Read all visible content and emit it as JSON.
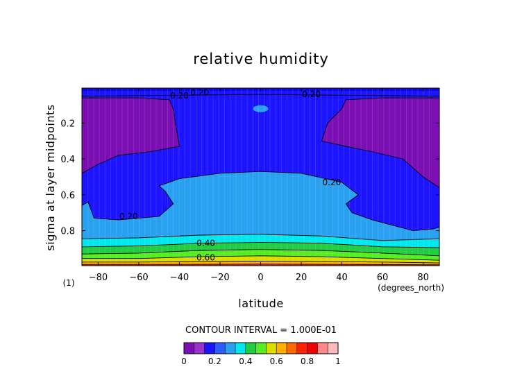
{
  "chart_data": {
    "type": "contour",
    "title": "relative humidity",
    "xlabel": "latitude",
    "ylabel": "sigma at layer midpoints",
    "x_units": "(degrees_north)",
    "corner_label": "(1)",
    "xlim": [
      -88,
      88
    ],
    "ylim": [
      0.995,
      0.005
    ],
    "y_inverted": true,
    "x_ticks": [
      -80,
      -60,
      -40,
      -20,
      0,
      20,
      40,
      60,
      80
    ],
    "x_tick_labels": [
      "−80",
      "−60",
      "−40",
      "−20",
      "0",
      "20",
      "40",
      "60",
      "80"
    ],
    "y_ticks": [
      0.2,
      0.4,
      0.6,
      0.8
    ],
    "y_tick_labels": [
      "0.2",
      "0.4",
      "0.6",
      "0.8"
    ],
    "contour_interval_label": "CONTOUR INTERVAL = 1.000E-01",
    "levels": [
      0,
      0.1,
      0.2,
      0.3,
      0.4,
      0.5,
      0.6,
      0.7,
      0.8,
      0.9,
      1.0
    ],
    "colorbar_tick_labels": [
      "0",
      "0.2",
      "0.4",
      "0.6",
      "0.8",
      "1"
    ],
    "colorbar_colors": [
      "#7b0fb3",
      "#9a33cc",
      "#1c14ff",
      "#2f5cff",
      "#2aa0f0",
      "#00e8ee",
      "#22cc44",
      "#55ee22",
      "#dddd00",
      "#ffb000",
      "#ff6a00",
      "#ff2200",
      "#f00000",
      "#ff8888",
      "#ffb8b8"
    ],
    "fill_colors": {
      "0.1-0.2": "#7b0fb3",
      "0.2-0.3": "#1c14ff",
      "0.3-0.4": "#2aa0f0",
      "0.4-0.5": "#00e8ee",
      "0.5-0.6": "#22cc44",
      "0.6-0.7": "#55ee22",
      "0.7-0.8": "#dddd00",
      "0.8-0.9": "#ffb000",
      "0.9-1.0": "#ff2200"
    },
    "contour_labels": [
      {
        "text": "0.20",
        "lat": -30,
        "sigma": 0.03
      },
      {
        "text": "0.20",
        "lat": -40,
        "sigma": 0.048
      },
      {
        "text": "0.20",
        "lat": 25,
        "sigma": 0.04
      },
      {
        "text": "0.20",
        "lat": 35,
        "sigma": 0.53
      },
      {
        "text": "0.20",
        "lat": -65,
        "sigma": 0.72
      },
      {
        "text": "0.40",
        "lat": -27,
        "sigma": 0.87
      },
      {
        "text": "0.60",
        "lat": -27,
        "sigma": 0.95
      }
    ],
    "regions": [
      {
        "level": 0.1,
        "note": "dry region below 0.2 at high latitudes in the upper troposphere (both hemispheres)"
      },
      {
        "level": 0.2,
        "note": "0.2-0.3 band across the tropics aloft and mid levels at high latitudes"
      },
      {
        "level": 0.3,
        "note": "0.3-0.4 in the mid/lower tropical troposphere"
      },
      {
        "level": 0.4,
        "note": "0.4 and higher near the surface (sigma > 0.85)"
      }
    ]
  }
}
